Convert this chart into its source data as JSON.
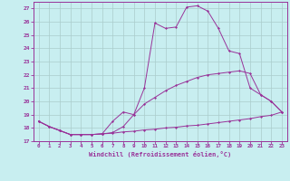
{
  "xlabel": "Windchill (Refroidissement éolien,°C)",
  "bg_color": "#c8eef0",
  "line_color": "#993399",
  "grid_color": "#aacccc",
  "ylim": [
    17,
    27.5
  ],
  "xlim": [
    -0.5,
    23.5
  ],
  "yticks": [
    17,
    18,
    19,
    20,
    21,
    22,
    23,
    24,
    25,
    26,
    27
  ],
  "xticks": [
    0,
    1,
    2,
    3,
    4,
    5,
    6,
    7,
    8,
    9,
    10,
    11,
    12,
    13,
    14,
    15,
    16,
    17,
    18,
    19,
    20,
    21,
    22,
    23
  ],
  "line1_x": [
    0,
    1,
    2,
    3,
    4,
    5,
    6,
    7,
    8,
    9,
    10,
    11,
    12,
    13,
    14,
    15,
    16,
    17,
    18,
    19,
    20,
    21,
    22,
    23
  ],
  "line1_y": [
    18.5,
    18.1,
    17.8,
    17.5,
    17.5,
    17.5,
    17.55,
    17.6,
    17.7,
    17.75,
    17.85,
    17.9,
    18.0,
    18.05,
    18.15,
    18.2,
    18.3,
    18.4,
    18.5,
    18.6,
    18.7,
    18.85,
    18.95,
    19.2
  ],
  "line2_x": [
    0,
    1,
    2,
    3,
    4,
    5,
    6,
    7,
    8,
    9,
    10,
    11,
    12,
    13,
    14,
    15,
    16,
    17,
    18,
    19,
    20,
    21,
    22,
    23
  ],
  "line2_y": [
    18.5,
    18.1,
    17.8,
    17.5,
    17.5,
    17.5,
    17.55,
    17.65,
    18.1,
    19.0,
    19.8,
    20.3,
    20.8,
    21.2,
    21.5,
    21.8,
    22.0,
    22.1,
    22.2,
    22.3,
    22.1,
    20.5,
    20.0,
    19.2
  ],
  "line3_x": [
    0,
    1,
    2,
    3,
    4,
    5,
    6,
    7,
    8,
    9,
    10,
    11,
    12,
    13,
    14,
    15,
    16,
    17,
    18,
    19,
    20,
    21,
    22,
    23
  ],
  "line3_y": [
    18.5,
    18.1,
    17.8,
    17.5,
    17.5,
    17.5,
    17.55,
    18.5,
    19.2,
    19.0,
    21.0,
    25.9,
    25.5,
    25.6,
    27.1,
    27.2,
    26.8,
    25.5,
    23.8,
    23.6,
    21.0,
    20.5,
    20.0,
    19.2
  ]
}
